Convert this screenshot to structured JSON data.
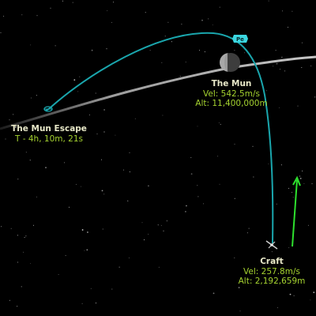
{
  "mun": {
    "name": "The Mun",
    "vel": "Vel: 542.5m/s",
    "alt": "Alt: 11,400,000m"
  },
  "escape": {
    "name": "The Mun Escape",
    "time": "T - 4h, 10m, 21s"
  },
  "craft": {
    "name": "Craft",
    "vel": "Vel: 257.8m/s",
    "alt": "Alt: 2,192,659m"
  },
  "periapsis_marker": "Pe",
  "colors": {
    "trajectory": "#1aa6ad",
    "mun_orbit": "#b8b8b8",
    "velocity_vector": "#2ee02e",
    "label_name": "#e8e8c8",
    "label_info": "#a5d230",
    "pe_marker": "#3bd6e0"
  }
}
